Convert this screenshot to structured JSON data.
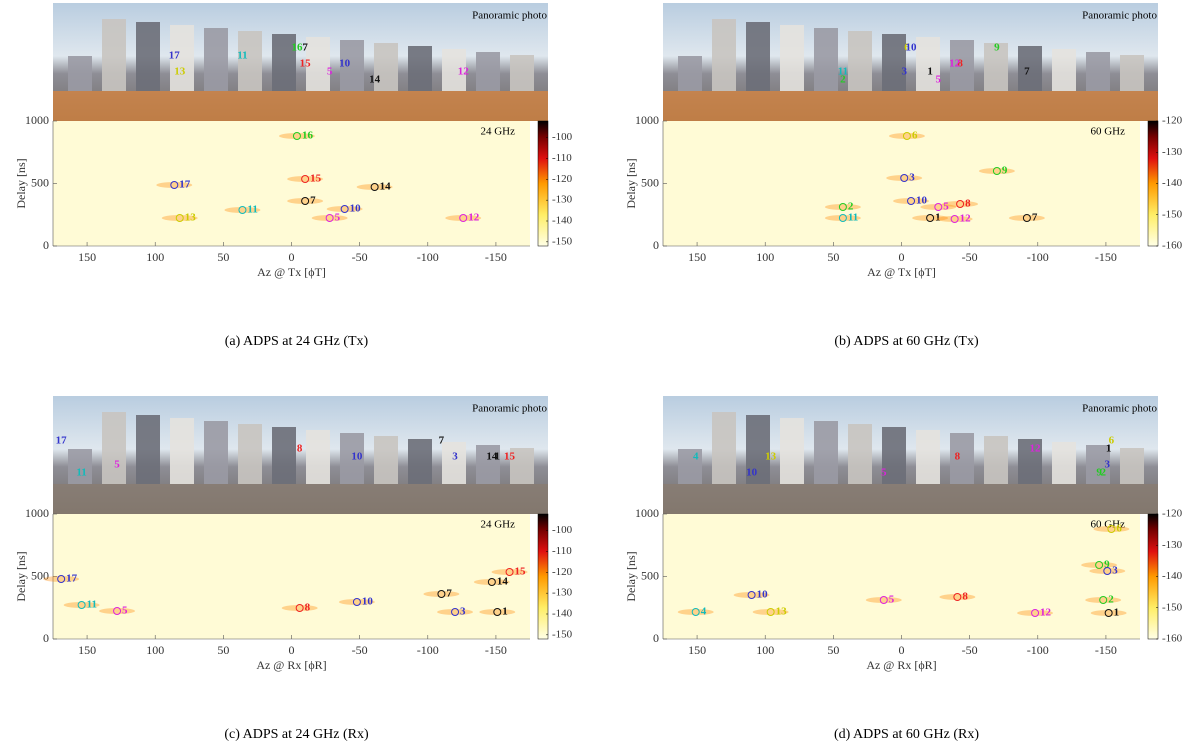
{
  "chart_data": [
    {
      "type": "scatter",
      "caption": "(a) ADPS at 24 GHz (Tx)",
      "photo_label": "Panoramic photo",
      "annotation": "24 GHz",
      "xlabel": "Az @ Tx [ϕT]",
      "ylabel": "Delay [ns]",
      "xlim": [
        175,
        -175
      ],
      "xticks": [
        150,
        100,
        50,
        0,
        -50,
        -100,
        -150
      ],
      "ylim": [
        0,
        1000
      ],
      "yticks": [
        0,
        500,
        1000
      ],
      "clim": [
        -152,
        -92
      ],
      "cticks": [
        -100,
        -110,
        -120,
        -130,
        -140,
        -150
      ],
      "points": [
        {
          "label": "16",
          "x": -4,
          "y": 880,
          "color": "#22cc22"
        },
        {
          "label": "15",
          "x": -10,
          "y": 536,
          "color": "#ee2222"
        },
        {
          "label": "17",
          "x": 86,
          "y": 488,
          "color": "#3333cc"
        },
        {
          "label": "14",
          "x": -61,
          "y": 472,
          "color": "#111111"
        },
        {
          "label": "7",
          "x": -10,
          "y": 360,
          "color": "#111111"
        },
        {
          "label": "10",
          "x": -39,
          "y": 296,
          "color": "#3333cc"
        },
        {
          "label": "11",
          "x": 36,
          "y": 288,
          "color": "#11bbbb"
        },
        {
          "label": "13",
          "x": 82,
          "y": 224,
          "color": "#cccc00"
        },
        {
          "label": "5",
          "x": -28,
          "y": 224,
          "color": "#dd22dd"
        },
        {
          "label": "12",
          "x": -126,
          "y": 224,
          "color": "#dd22dd"
        }
      ]
    },
    {
      "type": "scatter",
      "caption": "(b) ADPS at 60 GHz (Tx)",
      "photo_label": "Panoramic photo",
      "annotation": "60 GHz",
      "xlabel": "Az @ Tx [ϕT]",
      "ylabel": "Delay [ns]",
      "xlim": [
        175,
        -175
      ],
      "xticks": [
        150,
        100,
        50,
        0,
        -50,
        -100,
        -150
      ],
      "ylim": [
        0,
        1000
      ],
      "yticks": [
        0,
        500,
        1000
      ],
      "clim": [
        -160,
        -120
      ],
      "cticks": [
        -120,
        -130,
        -140,
        -150,
        -160
      ],
      "points": [
        {
          "label": "6",
          "x": -4,
          "y": 880,
          "color": "#cccc00"
        },
        {
          "label": "9",
          "x": -70,
          "y": 600,
          "color": "#22cc22"
        },
        {
          "label": "3",
          "x": -2,
          "y": 544,
          "color": "#3333cc"
        },
        {
          "label": "10",
          "x": -7,
          "y": 360,
          "color": "#3333cc"
        },
        {
          "label": "8",
          "x": -43,
          "y": 336,
          "color": "#ee2222"
        },
        {
          "label": "2",
          "x": 43,
          "y": 312,
          "color": "#22cc22"
        },
        {
          "label": "5",
          "x": -27,
          "y": 312,
          "color": "#dd22dd"
        },
        {
          "label": "11",
          "x": 43,
          "y": 224,
          "color": "#11bbbb"
        },
        {
          "label": "1",
          "x": -21,
          "y": 224,
          "color": "#111111"
        },
        {
          "label": "12",
          "x": -39,
          "y": 216,
          "color": "#dd22dd"
        },
        {
          "label": "7",
          "x": -92,
          "y": 224,
          "color": "#111111"
        }
      ]
    },
    {
      "type": "scatter",
      "caption": "(c) ADPS at 24 GHz (Rx)",
      "photo_label": "Panoramic photo",
      "annotation": "24 GHz",
      "xlabel": "Az @ Rx [ϕR]",
      "ylabel": "Delay [ns]",
      "xlim": [
        175,
        -175
      ],
      "xticks": [
        150,
        100,
        50,
        0,
        -50,
        -100,
        -150
      ],
      "ylim": [
        0,
        1000
      ],
      "yticks": [
        0,
        500,
        1000
      ],
      "clim": [
        -152,
        -92
      ],
      "cticks": [
        -100,
        -110,
        -120,
        -130,
        -140,
        -150
      ],
      "points": [
        {
          "label": "17",
          "x": 169,
          "y": 480,
          "color": "#3333cc"
        },
        {
          "label": "15",
          "x": -160,
          "y": 536,
          "color": "#ee2222"
        },
        {
          "label": "14",
          "x": -147,
          "y": 456,
          "color": "#111111"
        },
        {
          "label": "7",
          "x": -110,
          "y": 360,
          "color": "#111111"
        },
        {
          "label": "10",
          "x": -48,
          "y": 296,
          "color": "#3333cc"
        },
        {
          "label": "8",
          "x": -6,
          "y": 248,
          "color": "#ee2222"
        },
        {
          "label": "3",
          "x": -120,
          "y": 216,
          "color": "#3333cc"
        },
        {
          "label": "1",
          "x": -151,
          "y": 216,
          "color": "#111111"
        },
        {
          "label": "5",
          "x": 128,
          "y": 224,
          "color": "#dd22dd"
        },
        {
          "label": "11",
          "x": 154,
          "y": 272,
          "color": "#11bbbb"
        }
      ]
    },
    {
      "type": "scatter",
      "caption": "(d) ADPS at 60 GHz (Rx)",
      "photo_label": "Panoramic photo",
      "annotation": "60 GHz",
      "xlabel": "Az @ Rx [ϕR]",
      "ylabel": "Delay [ns]",
      "xlim": [
        175,
        -175
      ],
      "xticks": [
        150,
        100,
        50,
        0,
        -50,
        -100,
        -150
      ],
      "ylim": [
        0,
        1000
      ],
      "yticks": [
        0,
        500,
        1000
      ],
      "clim": [
        -160,
        -120
      ],
      "cticks": [
        -120,
        -130,
        -140,
        -150,
        -160
      ],
      "points": [
        {
          "label": "6",
          "x": -154,
          "y": 880,
          "color": "#cccc00"
        },
        {
          "label": "9",
          "x": -145,
          "y": 592,
          "color": "#22cc22"
        },
        {
          "label": "3",
          "x": -151,
          "y": 544,
          "color": "#3333cc"
        },
        {
          "label": "10",
          "x": 110,
          "y": 352,
          "color": "#3333cc"
        },
        {
          "label": "5",
          "x": 13,
          "y": 312,
          "color": "#dd22dd"
        },
        {
          "label": "8",
          "x": -41,
          "y": 336,
          "color": "#ee2222"
        },
        {
          "label": "2",
          "x": -148,
          "y": 312,
          "color": "#22cc22"
        },
        {
          "label": "4",
          "x": 151,
          "y": 216,
          "color": "#11bbbb"
        },
        {
          "label": "13",
          "x": 96,
          "y": 216,
          "color": "#cccc00"
        },
        {
          "label": "12",
          "x": -98,
          "y": 208,
          "color": "#dd22dd"
        },
        {
          "label": "1",
          "x": -152,
          "y": 208,
          "color": "#111111"
        }
      ]
    }
  ]
}
